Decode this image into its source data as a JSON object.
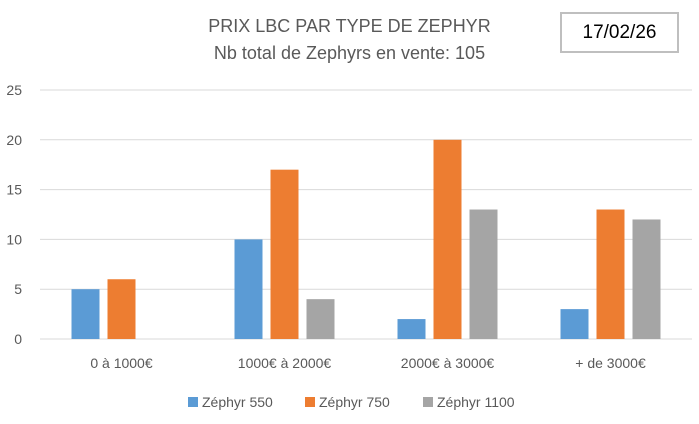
{
  "chart_data": {
    "type": "bar",
    "title": "PRIX LBC PAR TYPE DE ZEPHYR",
    "subtitle": "Nb total de Zephyrs en vente: 105",
    "date_label": "17/02/26",
    "categories": [
      "0 à 1000€",
      "1000€ à 2000€",
      "2000€ à 3000€",
      "+ de 3000€"
    ],
    "series": [
      {
        "name": "Zéphyr 550",
        "color": "#5b9bd5",
        "values": [
          5,
          10,
          2,
          3
        ]
      },
      {
        "name": "Zéphyr 750",
        "color": "#ed7d31",
        "values": [
          6,
          17,
          20,
          13
        ]
      },
      {
        "name": "Zéphyr 1100",
        "color": "#a5a5a5",
        "values": [
          0,
          4,
          13,
          12
        ]
      }
    ],
    "xlabel": "",
    "ylabel": "",
    "ylim": [
      0,
      25
    ],
    "yticks": [
      0,
      5,
      10,
      15,
      20,
      25
    ],
    "grid": true,
    "legend": "bottom"
  }
}
